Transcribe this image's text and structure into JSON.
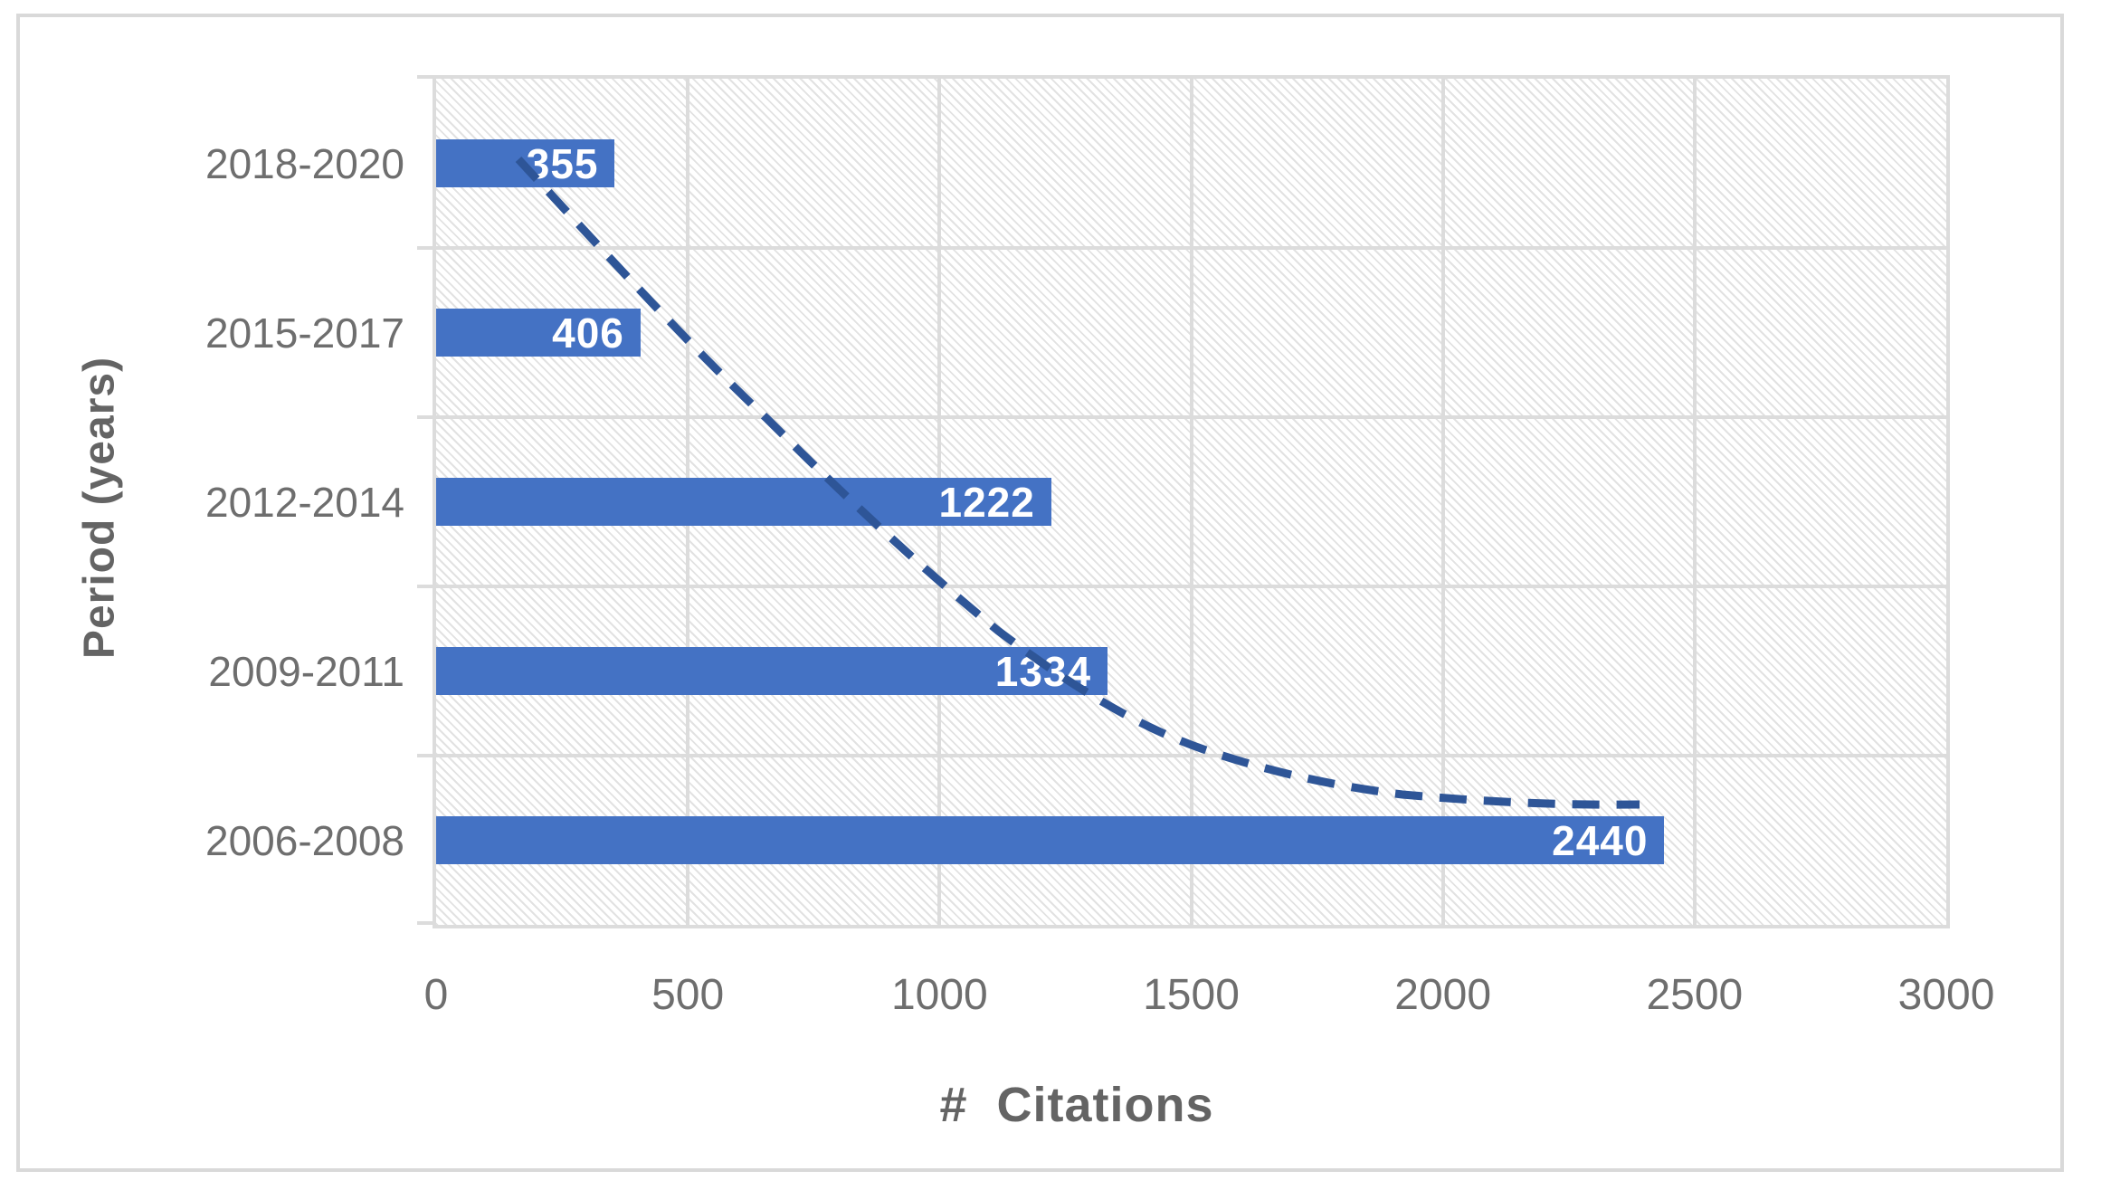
{
  "figure": {
    "background": "#ffffff",
    "border_color": "#d9d9d9"
  },
  "chart_data": {
    "type": "bar",
    "orientation": "horizontal",
    "title": "",
    "categories": [
      "2018-2020",
      "2015-2017",
      "2012-2014",
      "2009-2011",
      "2006-2008"
    ],
    "values": [
      355,
      406,
      1222,
      1334,
      2440
    ],
    "data_labels": [
      "355",
      "406",
      "1222",
      "1334",
      "2440"
    ],
    "xlabel": "#  Citations",
    "ylabel": "Period (years)",
    "xlim": [
      0,
      3000
    ],
    "x_ticks": [
      0,
      500,
      1000,
      1500,
      2000,
      2500,
      3000
    ],
    "x_tick_labels": [
      "0",
      "500",
      "1000",
      "1500",
      "2000",
      "2500",
      "3000"
    ],
    "grid": true,
    "plot_background": "hatched-diagonal",
    "legend": "none",
    "colors": {
      "bar": "#4472c4",
      "trendline": "#2e5597",
      "gridline": "#dcdcdc",
      "tick_label": "#6e6e6e",
      "axis_title": "#646464",
      "data_label": "#ffffff"
    },
    "trendline": {
      "style": "dashed",
      "shape": "decaying-curve",
      "color": "#2e5597"
    }
  }
}
